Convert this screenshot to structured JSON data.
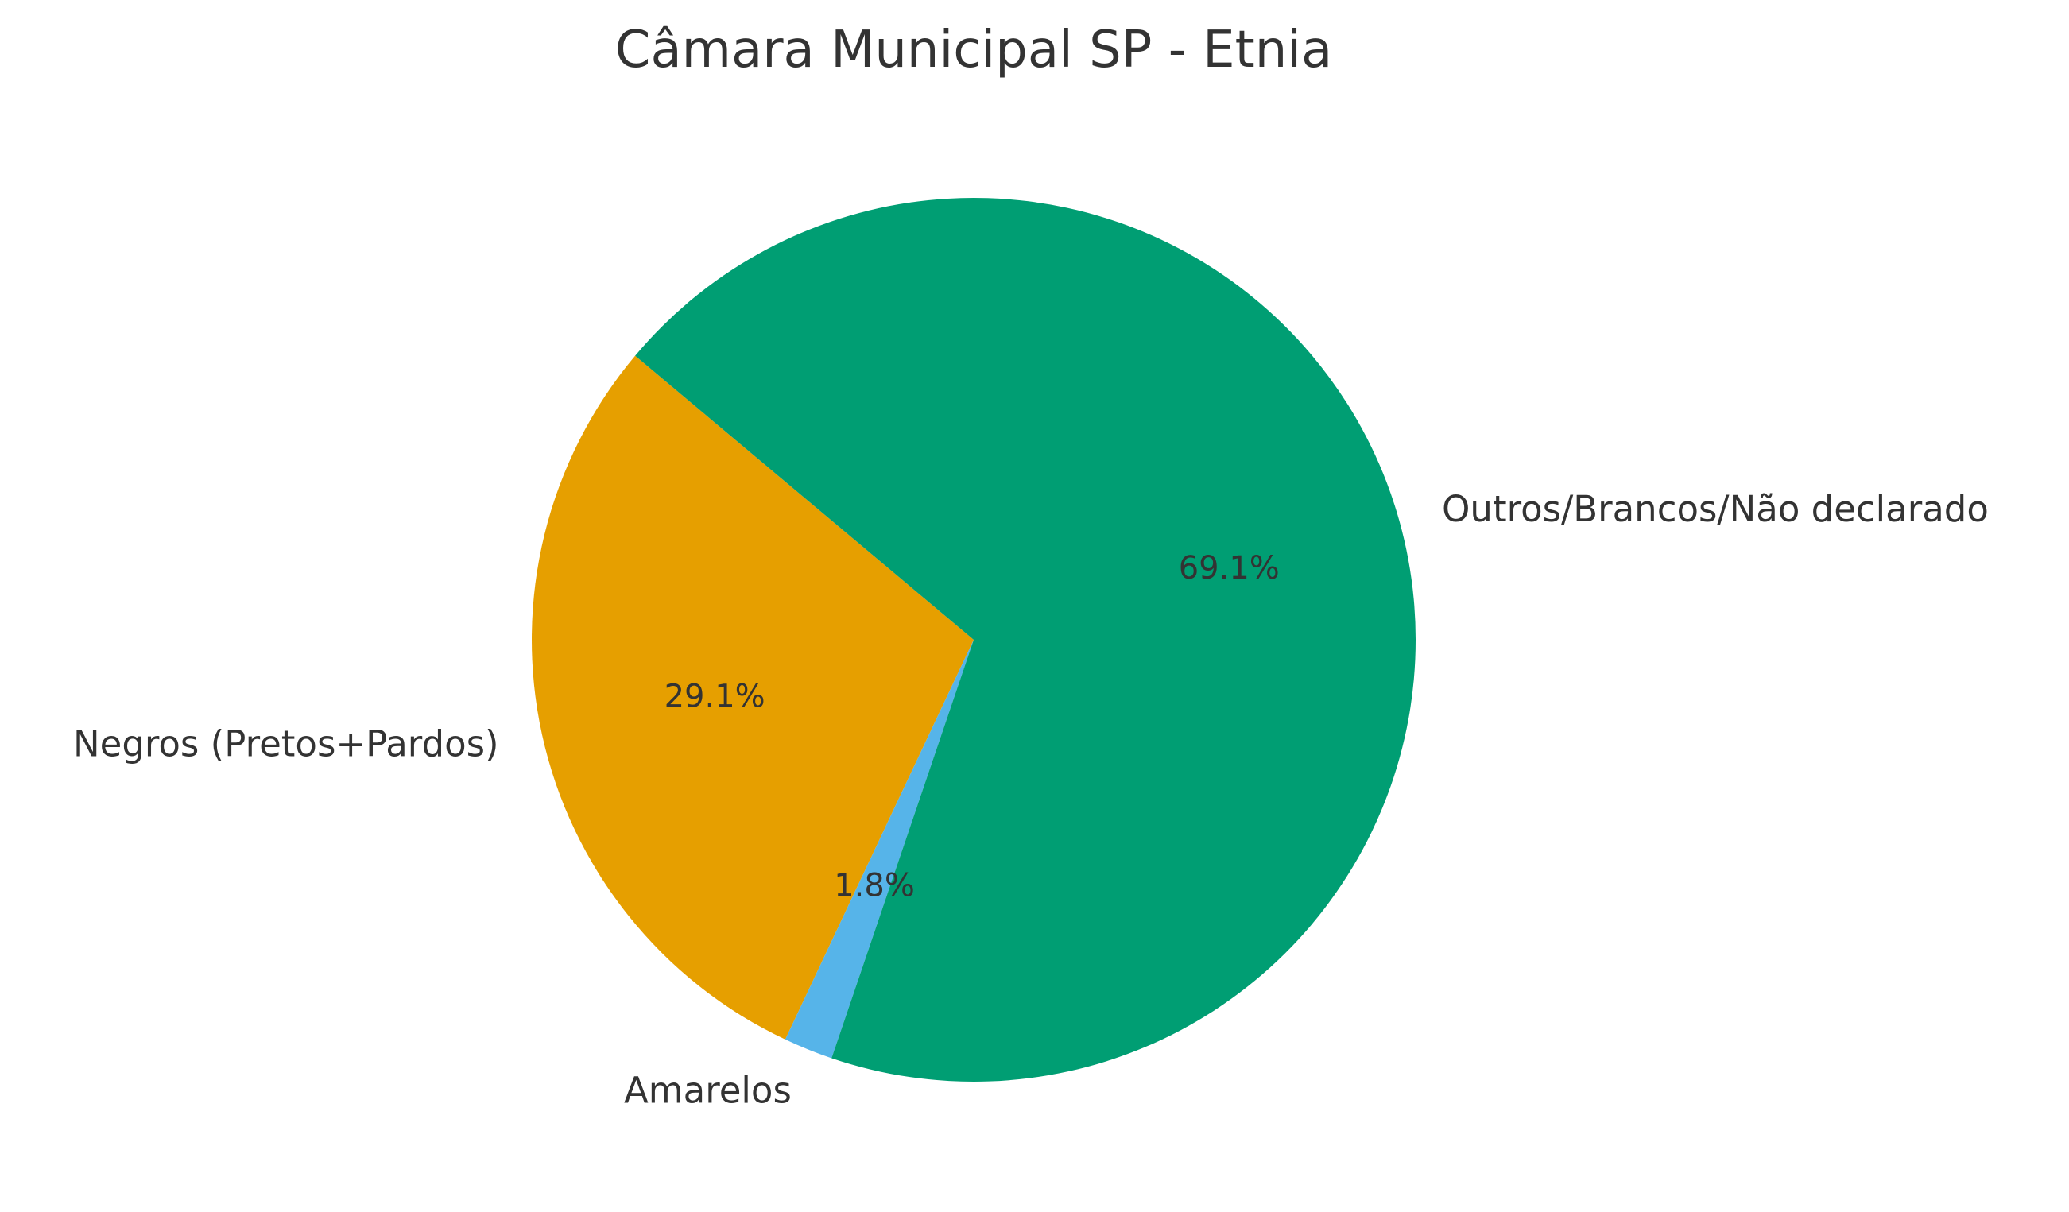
{
  "chart_data": {
    "type": "pie",
    "title": "Câmara Municipal SP - Etnia",
    "start_angle_deg": 140,
    "direction": "counterclockwise",
    "slices": [
      {
        "label": "Negros (Pretos+Pardos)",
        "value": 29.1,
        "pct_label": "29.1%",
        "color": "#E69F00"
      },
      {
        "label": "Amarelos",
        "value": 1.8,
        "pct_label": "1.8%",
        "color": "#56B4E9"
      },
      {
        "label": "Outros/Brancos/Não declarado",
        "value": 69.1,
        "pct_label": "69.1%",
        "color": "#009E73"
      }
    ]
  }
}
